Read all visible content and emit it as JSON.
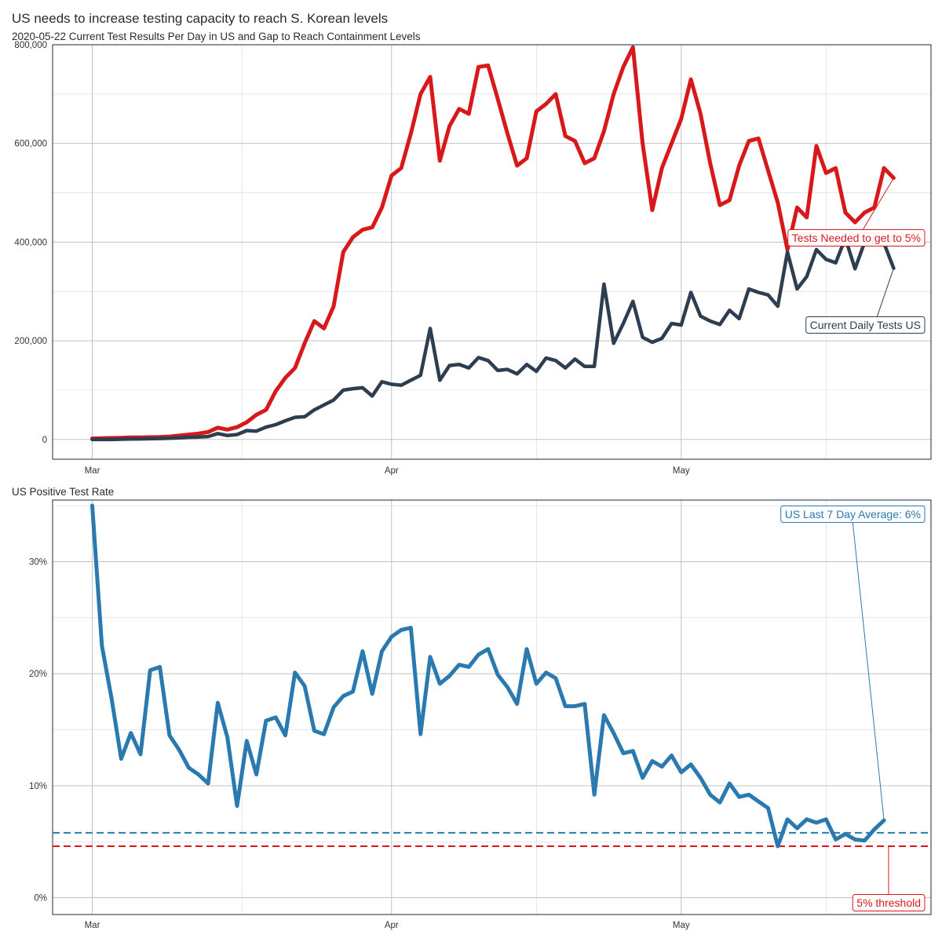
{
  "header": {
    "title": "US needs to increase testing capacity to reach S. Korean levels",
    "subtitle": "2020-05-22 Current Test Results Per Day in US and Gap to Reach Containment Levels",
    "panel2_title": "US Positive Test Rate"
  },
  "colors": {
    "needed": "#d7191c",
    "current": "#2c3e50",
    "rate": "#2a7ab0",
    "threshold": "#e0141e",
    "average": "#2a7ab0"
  },
  "chart_data": [
    {
      "type": "line",
      "title": "",
      "xlabel": "",
      "ylabel": "",
      "x_type": "date",
      "x_start": "2020-03-01",
      "x_ticks": [
        "Mar",
        "Apr",
        "May"
      ],
      "y_ticks": [
        "0",
        "200,000",
        "400,000",
        "600,000",
        "800,000"
      ],
      "ylim": [
        -40000,
        800000
      ],
      "grid": true,
      "series": [
        {
          "name": "Tests Needed to get to 5%",
          "color": "#d7191c",
          "values": [
            2000,
            2500,
            3000,
            3500,
            4000,
            4000,
            4500,
            5000,
            6000,
            8000,
            10000,
            12000,
            15000,
            24000,
            20000,
            25000,
            35000,
            50000,
            60000,
            98000,
            125000,
            145000,
            195000,
            240000,
            225000,
            270000,
            380000,
            410000,
            425000,
            430000,
            470000,
            535000,
            550000,
            620000,
            700000,
            735000,
            565000,
            635000,
            670000,
            660000,
            755000,
            758000,
            690000,
            620000,
            555000,
            570000,
            665000,
            680000,
            700000,
            615000,
            605000,
            560000,
            570000,
            625000,
            700000,
            755000,
            795000,
            600000,
            465000,
            550000,
            600000,
            650000,
            730000,
            660000,
            560000,
            475000,
            485000,
            555000,
            605000,
            610000,
            545000,
            480000,
            385000,
            470000,
            450000,
            595000,
            540000,
            550000,
            460000,
            440000,
            460000,
            470000,
            550000,
            530000
          ]
        },
        {
          "name": "Current Daily Tests US",
          "color": "#2c3e50",
          "values": [
            0,
            0,
            0,
            500,
            1000,
            1200,
            1500,
            2000,
            2500,
            3500,
            4500,
            5000,
            6000,
            12000,
            8000,
            10000,
            18000,
            17000,
            25000,
            30000,
            38000,
            45000,
            46000,
            60000,
            70000,
            80000,
            100000,
            103000,
            105000,
            88000,
            117000,
            112000,
            110000,
            120000,
            130000,
            225000,
            120000,
            150000,
            152000,
            145000,
            166000,
            160000,
            140000,
            142000,
            133000,
            152000,
            138000,
            165000,
            160000,
            145000,
            163000,
            148000,
            148000,
            315000,
            195000,
            235000,
            280000,
            207000,
            197000,
            205000,
            235000,
            232000,
            298000,
            250000,
            240000,
            233000,
            262000,
            245000,
            305000,
            298000,
            293000,
            270000,
            380000,
            305000,
            330000,
            385000,
            365000,
            358000,
            408000,
            346000,
            400000,
            410000,
            398000,
            347000
          ]
        }
      ],
      "annotations": [
        {
          "text": "Tests Needed to get to 5%",
          "series": "Tests Needed to get to 5%"
        },
        {
          "text": "Current Daily Tests US",
          "series": "Current Daily Tests US"
        }
      ]
    },
    {
      "type": "line",
      "title": "US Positive Test Rate",
      "xlabel": "",
      "ylabel": "",
      "x_type": "date",
      "x_start": "2020-03-01",
      "x_ticks": [
        "Mar",
        "Apr",
        "May"
      ],
      "y_ticks": [
        "0%",
        "10%",
        "20%",
        "30%"
      ],
      "ylim": [
        -1.5,
        35.5
      ],
      "y_unit": "percent",
      "grid": true,
      "series": [
        {
          "name": "US Positive Test Rate",
          "color": "#2a7ab0",
          "values": [
            35,
            22.5,
            17.8,
            12.4,
            14.7,
            12.8,
            20.3,
            20.6,
            14.5,
            13.2,
            11.6,
            11.0,
            10.2,
            17.4,
            14.3,
            8.2,
            14.0,
            11.0,
            15.8,
            16.1,
            14.5,
            20.1,
            18.9,
            14.9,
            14.6,
            17.0,
            18.0,
            18.4,
            22.0,
            18.2,
            22.0,
            23.3,
            23.9,
            24.1,
            14.6,
            21.5,
            19.1,
            19.8,
            20.8,
            20.6,
            21.7,
            22.2,
            19.9,
            18.8,
            17.3,
            22.2,
            19.1,
            20.1,
            19.6,
            17.1,
            17.1,
            17.3,
            9.2,
            16.3,
            14.7,
            12.9,
            13.1,
            10.7,
            12.2,
            11.7,
            12.7,
            11.2,
            11.9,
            10.7,
            9.2,
            8.5,
            10.2,
            9.0,
            9.2,
            8.6,
            8.0,
            4.6,
            7.0,
            6.2,
            7.0,
            6.7,
            7.0,
            5.2,
            5.7,
            5.2,
            5.1,
            6.1,
            6.9
          ]
        }
      ],
      "reference_lines": [
        {
          "name": "US Last 7 Day Average",
          "value": 5.8,
          "color": "#2a7ab0",
          "style": "dashed"
        },
        {
          "name": "5% threshold",
          "value": 4.6,
          "color": "#e0141e",
          "style": "dashed"
        }
      ],
      "annotations": [
        {
          "text": "US Last 7 Day Average: 6%",
          "target": "last-point"
        },
        {
          "text": "5% threshold",
          "target": "threshold-line"
        }
      ]
    }
  ]
}
